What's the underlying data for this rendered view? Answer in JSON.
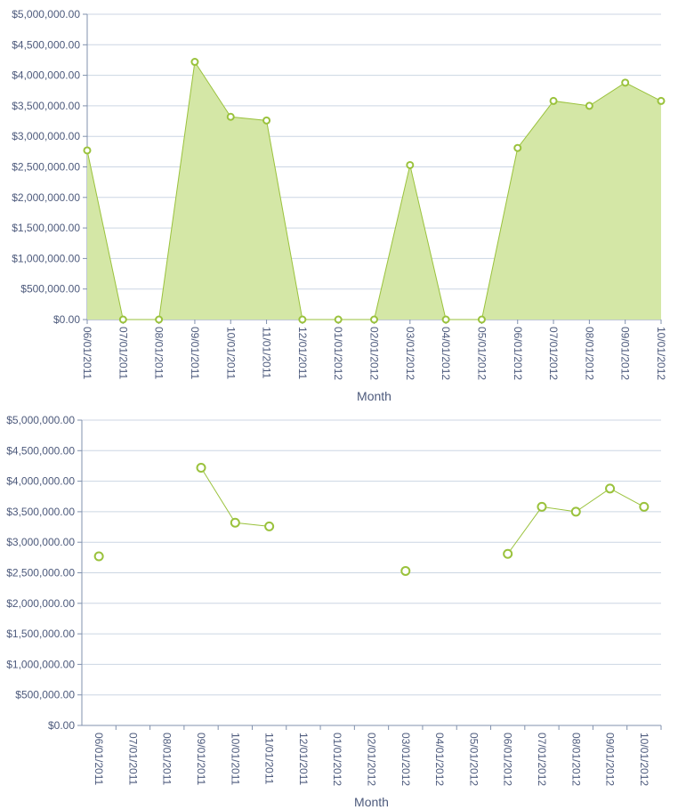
{
  "colors": {
    "fill": "#d4e7a6",
    "line": "#9ac23c",
    "grid": "#ccd6e3",
    "axis": "#8091ad",
    "text": "#4d5a7c"
  },
  "chart_data": [
    {
      "type": "area",
      "title": "",
      "xlabel": "Month",
      "ylabel": "",
      "ylim": [
        0,
        5000000
      ],
      "grid": true,
      "yticks": [
        "$0.00",
        "$500,000.00",
        "$1,000,000.00",
        "$1,500,000.00",
        "$2,000,000.00",
        "$2,500,000.00",
        "$3,000,000.00",
        "$3,500,000.00",
        "$4,000,000.00",
        "$4,500,000.00",
        "$5,000,000.00"
      ],
      "categories": [
        "06/01/2011",
        "07/01/2011",
        "08/01/2011",
        "09/01/2011",
        "10/01/2011",
        "11/01/2011",
        "12/01/2011",
        "01/01/2012",
        "02/01/2012",
        "03/01/2012",
        "04/01/2012",
        "05/01/2012",
        "06/01/2012",
        "07/01/2012",
        "08/01/2012",
        "09/01/2012",
        "10/01/2012"
      ],
      "values": [
        2770000,
        0,
        0,
        4220000,
        3320000,
        3260000,
        0,
        0,
        0,
        2530000,
        0,
        0,
        2810000,
        3580000,
        3500000,
        3880000,
        3580000
      ]
    },
    {
      "type": "line",
      "title": "",
      "xlabel": "Month",
      "ylabel": "",
      "ylim": [
        0,
        5000000
      ],
      "grid": true,
      "yticks": [
        "$0.00",
        "$500,000.00",
        "$1,000,000.00",
        "$1,500,000.00",
        "$2,000,000.00",
        "$2,500,000.00",
        "$3,000,000.00",
        "$3,500,000.00",
        "$4,000,000.00",
        "$4,500,000.00",
        "$5,000,000.00"
      ],
      "categories": [
        "06/01/2011",
        "07/01/2011",
        "08/01/2011",
        "09/01/2011",
        "10/01/2011",
        "11/01/2011",
        "12/01/2011",
        "01/01/2012",
        "02/01/2012",
        "03/01/2012",
        "04/01/2012",
        "05/01/2012",
        "06/01/2012",
        "07/01/2012",
        "08/01/2012",
        "09/01/2012",
        "10/01/2012"
      ],
      "values": [
        2770000,
        null,
        null,
        4220000,
        3320000,
        3260000,
        null,
        null,
        null,
        2530000,
        null,
        null,
        2810000,
        3580000,
        3500000,
        3880000,
        3580000
      ]
    }
  ]
}
